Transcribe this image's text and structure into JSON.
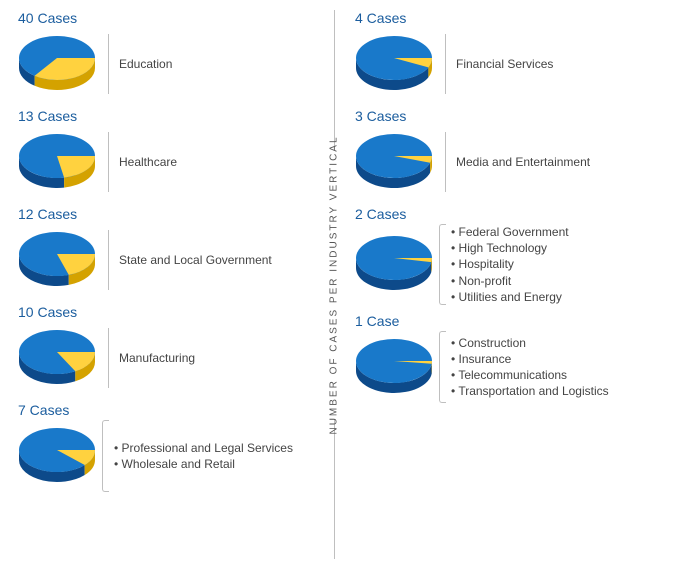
{
  "axis_label": "NUMBER OF CASES PER INDUSTRY VERTICAL",
  "pie_style": {
    "blue_top": "#1979ca",
    "blue_side": "#0d4a8a",
    "yellow_top": "#ffd23f",
    "yellow_side": "#d4a200",
    "title_color": "#1b5d9e",
    "title_fontsize": 14,
    "label_color": "#444444",
    "label_fontsize": 12,
    "background": "#ffffff",
    "divider_color": "#bfbfbf",
    "pie_rx": 38,
    "pie_ry": 22,
    "pie_depth": 10
  },
  "left": [
    {
      "title": "40 Cases",
      "slice_percent": 35,
      "labels": [
        "Education"
      ],
      "bulleted": false
    },
    {
      "title": "13 Cases",
      "slice_percent": 22,
      "labels": [
        "Healthcare"
      ],
      "bulleted": false
    },
    {
      "title": "12 Cases",
      "slice_percent": 20,
      "labels": [
        "State and Local Government"
      ],
      "bulleted": false
    },
    {
      "title": "10 Cases",
      "slice_percent": 17,
      "labels": [
        "Manufacturing"
      ],
      "bulleted": false
    },
    {
      "title": "7 Cases",
      "slice_percent": 12,
      "labels": [
        "Professional and Legal Services",
        "Wholesale and Retail"
      ],
      "bulleted": true
    }
  ],
  "right": [
    {
      "title": "4 Cases",
      "slice_percent": 7,
      "labels": [
        "Financial Services"
      ],
      "bulleted": false
    },
    {
      "title": "3 Cases",
      "slice_percent": 5,
      "labels": [
        "Media and Entertainment"
      ],
      "bulleted": false
    },
    {
      "title": "2 Cases",
      "slice_percent": 3,
      "labels": [
        "Federal Government",
        "High Technology",
        "Hospitality",
        "Non-profit",
        "Utilities and Energy"
      ],
      "bulleted": true
    },
    {
      "title": "1 Case",
      "slice_percent": 2,
      "labels": [
        "Construction",
        "Insurance",
        "Telecommunications",
        "Transportation and Logistics"
      ],
      "bulleted": true
    }
  ]
}
